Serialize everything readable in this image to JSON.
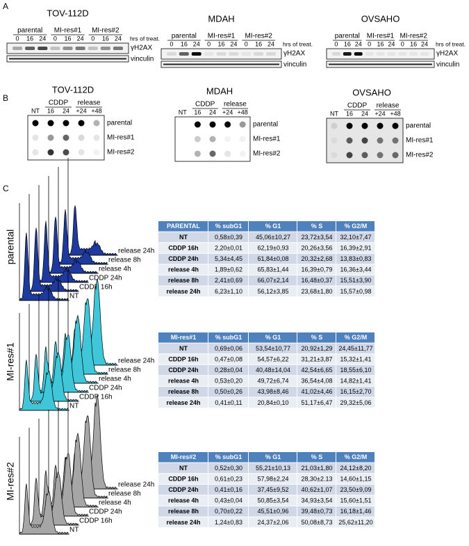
{
  "panel_a": {
    "label": "A",
    "blots": [
      {
        "title": "TOV-112D",
        "groups": [
          "parental",
          "MI-res#1",
          "MI-res#2"
        ],
        "lanes": [
          "0",
          "16",
          "24",
          "0",
          "16",
          "24",
          "0",
          "16",
          "24"
        ],
        "unit": "hrs of treat.",
        "bands": [
          "γH2AX",
          "vinculin"
        ]
      },
      {
        "title": "MDAH",
        "groups": [
          "parental",
          "MI-res#1",
          "MI-res#2"
        ],
        "lanes": [
          "0",
          "16",
          "24",
          "0",
          "16",
          "24",
          "0",
          "16",
          "24"
        ],
        "unit": "hrs of treat.",
        "bands": [
          "γH2AX",
          "vinculin"
        ]
      },
      {
        "title": "OVSAHO",
        "groups": [
          "parental",
          "MI-res#1",
          "MI-res#2"
        ],
        "lanes": [
          "0",
          "16",
          "24",
          "0",
          "16",
          "24",
          "0",
          "16",
          "24"
        ],
        "unit": "hrs of treat.",
        "bands": [
          "γH2AX",
          "vinculin"
        ]
      }
    ]
  },
  "panel_b": {
    "label": "B",
    "blots": [
      {
        "title": "TOV-112D",
        "conditions": [
          "CDDP",
          "release"
        ],
        "lanes": [
          "NT",
          "16",
          "24",
          "+24",
          "+48"
        ],
        "rows": [
          "parental",
          "MI-res#1",
          "MI-res#2"
        ]
      },
      {
        "title": "MDAH",
        "conditions": [
          "CDDP",
          "release"
        ],
        "lanes": [
          "NT",
          "16",
          "24",
          "+24",
          "+48"
        ],
        "rows": [
          "parental",
          "MI-res#1",
          "MI-res#2"
        ]
      },
      {
        "title": "OVSAHO",
        "conditions": [
          "CDDP",
          "release"
        ],
        "lanes": [
          "NT",
          "16",
          "24",
          "+24",
          "+48"
        ],
        "rows": [
          "parental",
          "MI-res#1",
          "MI-res#2"
        ]
      }
    ]
  },
  "panel_c": {
    "label": "C",
    "rows": [
      {
        "label": "parental",
        "histograms": [
          "release 24h",
          "release 8h",
          "release 4h",
          "CDDP 24h",
          "CDDP 16h",
          "NT"
        ],
        "table": {
          "header": [
            "PARENTAL",
            "% subG1",
            "% G1",
            "% S",
            "% G2/M"
          ],
          "rows": [
            [
              "NT",
              "0,58±0,39",
              "45,06±10,27",
              "23,72±3,54",
              "32,10±7,47"
            ],
            [
              "CDDP 16h",
              "2,20±0,01",
              "62,19±0,93",
              "20,26±3,56",
              "16,39±2,91"
            ],
            [
              "CDDP 24h",
              "5,34±4,45",
              "61,84±0,08",
              "20,32±2,68",
              "13,83±0,83"
            ],
            [
              "release 4h",
              "1,89±0,62",
              "65,83±1,44",
              "16,39±0,79",
              "16,36±3,44"
            ],
            [
              "release 8h",
              "2,41±0,69",
              "66,07±2,14",
              "16,48±0,37",
              "15,51±3,90"
            ],
            [
              "release 24h",
              "6,23±1,10",
              "56,12±3,85",
              "23,68±1,80",
              "15,57±0,98"
            ]
          ]
        }
      },
      {
        "label": "MI-res#1",
        "histograms": [
          "release 24h",
          "release 8h",
          "release 4h",
          "CDDP 24h",
          "CDDP 16h",
          "NT"
        ],
        "table": {
          "header": [
            "MI-res#1",
            "% subG1",
            "% G1",
            "% S",
            "% G2/M"
          ],
          "rows": [
            [
              "NT",
              "0,69±0,06",
              "53,54±10,77",
              "20,92±1,29",
              "24,45±11,77"
            ],
            [
              "CDDP 16h",
              "0,47±0,08",
              "54,57±6,22",
              "31,21±3,87",
              "15,32±1,41"
            ],
            [
              "CDDP 24h",
              "0,28±0,04",
              "40,48±14,04",
              "42,54±6,65",
              "18,55±6,10"
            ],
            [
              "release 4h",
              "0,53±0,20",
              "49,72±6,74",
              "36,54±4,08",
              "14,82±1,41"
            ],
            [
              "release 8h",
              "0,50±0,26",
              "43,98±8,46",
              "41,02±4,46",
              "16,15±2,70"
            ],
            [
              "release 24h",
              "0,41±0,11",
              "20,84±0,10",
              "51,17±6,47",
              "29,32±5,06"
            ]
          ]
        }
      },
      {
        "label": "MI-res#2",
        "histograms": [
          "release 24h",
          "release 8h",
          "release 4h",
          "CDDP 24h",
          "CDDP 16h",
          "NT"
        ],
        "table": {
          "header": [
            "MI-res#2",
            "% subG1",
            "% G1",
            "% S",
            "% G2/M"
          ],
          "rows": [
            [
              "NT",
              "0,52±0,30",
              "55,21±10,13",
              "21,03±1,80",
              "24,12±8,20"
            ],
            [
              "CDDP 16h",
              "0,61±0,23",
              "57,98±2,24",
              "28,30±2.13",
              "14,60±1,15"
            ],
            [
              "CDDP 24h",
              "0,41±0,16",
              "37,45±9,52",
              "40,62±1,07",
              "23,50±9,09"
            ],
            [
              "release 4h",
              "0,43±0,04",
              "50,85±3,54",
              "34,93±3,54",
              "15,60±1,51"
            ],
            [
              "release 8h",
              "0,70±0,22",
              "45,51±0,96",
              "39,48±0,73",
              "16,18±1,46"
            ],
            [
              "release 24h",
              "1,24±0,83",
              "24,37±2,06",
              "50,08±8,73",
              "25,62±11,20"
            ]
          ]
        }
      }
    ]
  }
}
